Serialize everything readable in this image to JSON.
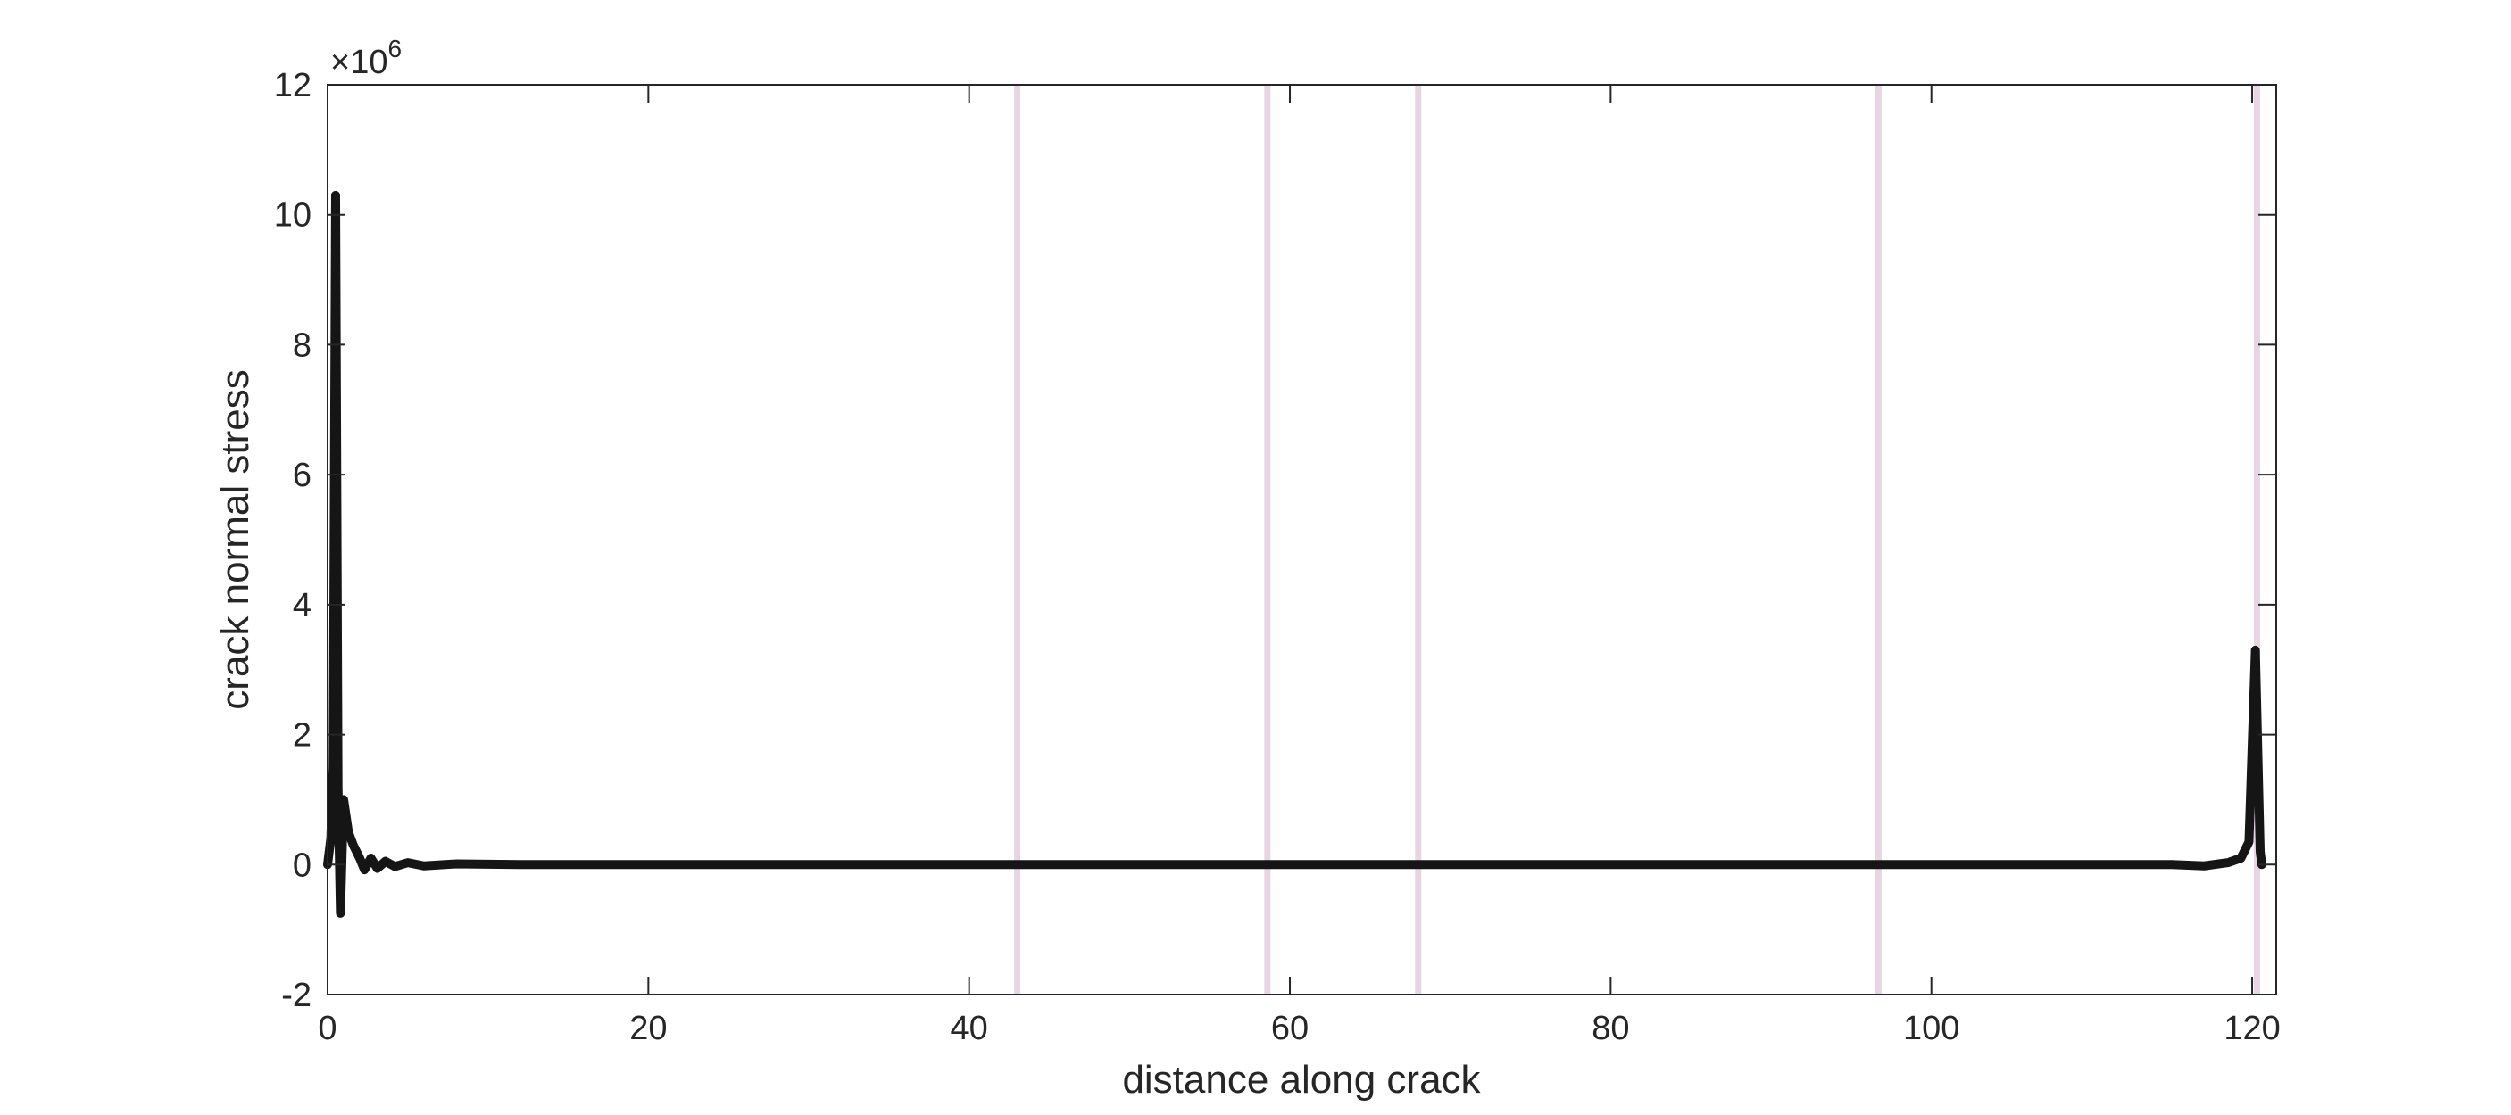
{
  "chart_data": {
    "type": "line",
    "title": "",
    "xlabel": "distance along crack",
    "ylabel": "crack normal stress",
    "xlim": [
      0,
      121.5
    ],
    "ylim": [
      -2,
      12
    ],
    "y_multiplier_label": "×10",
    "y_multiplier_exponent": "6",
    "x_ticks": [
      0,
      20,
      40,
      60,
      80,
      100,
      120
    ],
    "y_ticks": [
      -2,
      0,
      2,
      4,
      6,
      8,
      10,
      12
    ],
    "grid": false,
    "legend": "none",
    "colors": {
      "series": "#151515",
      "markers": "#e8d4e4",
      "axis": "#262626"
    },
    "vertical_markers": [
      43.0,
      58.6,
      68.0,
      96.7,
      120.3
    ],
    "series": [
      {
        "values_scale": 1000000,
        "points": [
          [
            0.0,
            0.0
          ],
          [
            0.2,
            0.4
          ],
          [
            0.35,
            1.5
          ],
          [
            0.5,
            10.3
          ],
          [
            0.65,
            1.2
          ],
          [
            0.8,
            -0.75
          ],
          [
            1.0,
            1.0
          ],
          [
            1.3,
            0.5
          ],
          [
            1.6,
            0.3
          ],
          [
            2.0,
            0.1
          ],
          [
            2.3,
            -0.08
          ],
          [
            2.7,
            0.1
          ],
          [
            3.1,
            -0.06
          ],
          [
            3.6,
            0.05
          ],
          [
            4.2,
            -0.03
          ],
          [
            5.0,
            0.03
          ],
          [
            6.0,
            -0.02
          ],
          [
            8.0,
            0.01
          ],
          [
            12.0,
            0.0
          ],
          [
            40.0,
            0.0
          ],
          [
            60.0,
            0.0
          ],
          [
            80.0,
            0.0
          ],
          [
            100.0,
            0.0
          ],
          [
            115.0,
            0.0
          ],
          [
            117.0,
            -0.02
          ],
          [
            118.5,
            0.03
          ],
          [
            119.3,
            0.1
          ],
          [
            119.8,
            0.35
          ],
          [
            120.2,
            3.3
          ],
          [
            120.5,
            0.2
          ],
          [
            120.6,
            0.0
          ]
        ]
      }
    ]
  }
}
